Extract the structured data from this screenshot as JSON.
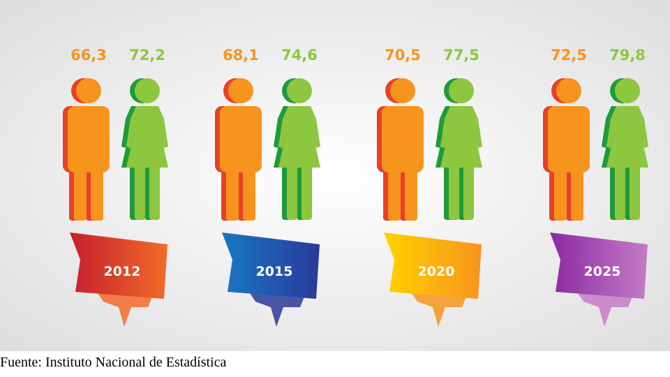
{
  "groups": [
    {
      "male": "66,3",
      "female": "72,2",
      "year": "2012"
    },
    {
      "male": "68,1",
      "female": "74,6",
      "year": "2015"
    },
    {
      "male": "70,5",
      "female": "77,5",
      "year": "2020"
    },
    {
      "male": "72,5",
      "female": "79,8",
      "year": "2025"
    }
  ],
  "source": "Fuente: Instituto Nacional de Estadística"
}
